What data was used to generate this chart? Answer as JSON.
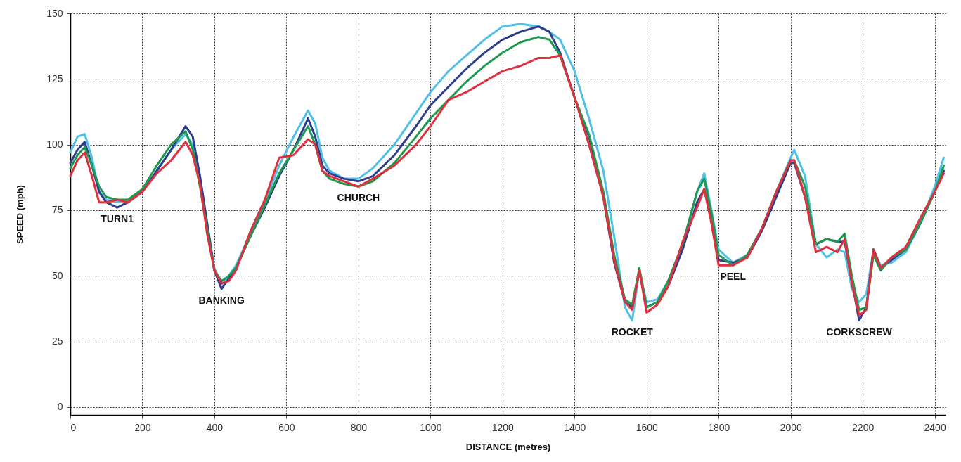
{
  "chart_data": {
    "type": "line",
    "xlabel": "DISTANCE (metres)",
    "ylabel": "SPEED (mph)",
    "x": [
      0,
      20,
      40,
      60,
      80,
      100,
      130,
      160,
      200,
      240,
      280,
      320,
      340,
      360,
      380,
      400,
      420,
      440,
      460,
      500,
      540,
      580,
      620,
      660,
      680,
      700,
      720,
      760,
      800,
      840,
      900,
      960,
      1000,
      1050,
      1100,
      1150,
      1200,
      1250,
      1300,
      1330,
      1360,
      1400,
      1440,
      1480,
      1510,
      1540,
      1560,
      1580,
      1600,
      1630,
      1660,
      1700,
      1740,
      1760,
      1780,
      1800,
      1840,
      1880,
      1920,
      1960,
      2000,
      2010,
      2040,
      2070,
      2100,
      2130,
      2150,
      2170,
      2190,
      2210,
      2230,
      2250,
      2280,
      2320,
      2360,
      2400,
      2425
    ],
    "series": [
      {
        "color": "#4fc0e8",
        "values": [
          97,
          103,
          104,
          95,
          82,
          79,
          78,
          79,
          82,
          90,
          98,
          104,
          100,
          88,
          70,
          53,
          47,
          50,
          54,
          66,
          78,
          92,
          103,
          113,
          108,
          95,
          90,
          87,
          87,
          91,
          100,
          112,
          120,
          128,
          134,
          140,
          145,
          146,
          145,
          143,
          140,
          128,
          110,
          90,
          65,
          38,
          33,
          52,
          40,
          41,
          48,
          62,
          82,
          89,
          75,
          60,
          55,
          58,
          68,
          82,
          95,
          98,
          88,
          62,
          57,
          60,
          59,
          45,
          40,
          43,
          60,
          54,
          55,
          59,
          70,
          84,
          95
        ]
      },
      {
        "color": "#2f3d8f",
        "values": [
          93,
          98,
          101,
          92,
          82,
          78,
          76,
          78,
          82,
          90,
          98,
          107,
          103,
          88,
          70,
          52,
          45,
          49,
          53,
          65,
          76,
          88,
          98,
          110,
          103,
          92,
          89,
          87,
          86,
          88,
          96,
          107,
          115,
          122,
          129,
          135,
          140,
          143,
          145,
          143,
          135,
          118,
          103,
          80,
          55,
          40,
          38,
          52,
          38,
          40,
          46,
          60,
          78,
          83,
          72,
          56,
          55,
          57,
          67,
          80,
          93,
          93,
          80,
          62,
          64,
          63,
          63,
          48,
          33,
          38,
          60,
          53,
          56,
          60,
          70,
          82,
          90
        ]
      },
      {
        "color": "#1e9a50",
        "values": [
          91,
          96,
          99,
          92,
          84,
          80,
          79,
          79,
          83,
          92,
          100,
          105,
          98,
          84,
          68,
          52,
          48,
          50,
          53,
          65,
          77,
          89,
          98,
          107,
          100,
          90,
          87,
          85,
          84,
          86,
          93,
          103,
          110,
          117,
          124,
          130,
          135,
          139,
          141,
          140,
          134,
          118,
          104,
          82,
          58,
          41,
          39,
          53,
          38,
          40,
          48,
          62,
          82,
          87,
          74,
          58,
          54,
          58,
          68,
          82,
          94,
          94,
          84,
          62,
          64,
          63,
          66,
          50,
          37,
          38,
          58,
          52,
          57,
          60,
          70,
          82,
          92
        ]
      },
      {
        "color": "#e0303e",
        "values": [
          88,
          94,
          97,
          88,
          78,
          78,
          79,
          78,
          82,
          89,
          94,
          101,
          96,
          85,
          66,
          52,
          47,
          48,
          52,
          67,
          79,
          95,
          96,
          102,
          100,
          90,
          88,
          86,
          84,
          87,
          92,
          100,
          107,
          117,
          120,
          124,
          128,
          130,
          133,
          133,
          134,
          118,
          100,
          80,
          56,
          40,
          37,
          52,
          36,
          39,
          46,
          63,
          76,
          83,
          70,
          54,
          54,
          57,
          68,
          82,
          94,
          94,
          80,
          59,
          61,
          59,
          64,
          47,
          35,
          37,
          60,
          53,
          57,
          61,
          72,
          82,
          89
        ]
      }
    ],
    "xlim": [
      0,
      2430
    ],
    "ylim": [
      -3,
      150
    ],
    "xticks": [
      0,
      200,
      400,
      600,
      800,
      1000,
      1200,
      1400,
      1600,
      1800,
      2000,
      2200,
      2400
    ],
    "yticks": [
      0,
      25,
      50,
      75,
      100,
      125,
      150
    ],
    "grid": true,
    "marker": "none",
    "line_style": "solid",
    "annotations": [
      {
        "text": "TURN1",
        "x": 130,
        "y": 76
      },
      {
        "text": "BANKING",
        "x": 420,
        "y": 45
      },
      {
        "text": "CHURCH",
        "x": 800,
        "y": 84
      },
      {
        "text": "ROCKET",
        "x": 1560,
        "y": 33
      },
      {
        "text": "PEEL",
        "x": 1840,
        "y": 54
      },
      {
        "text": "CORKSCREW",
        "x": 2190,
        "y": 33
      }
    ]
  }
}
